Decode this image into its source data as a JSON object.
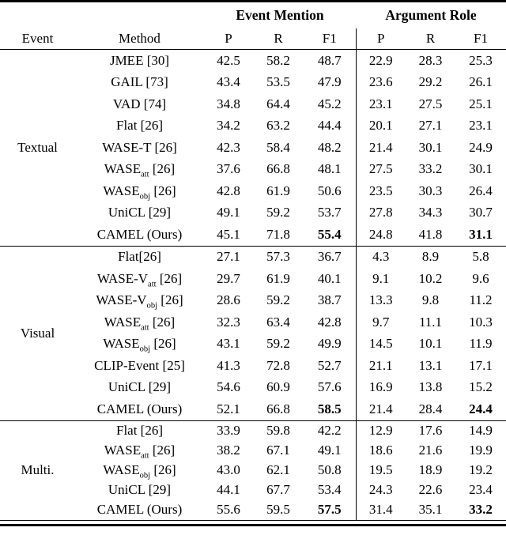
{
  "table": {
    "header": {
      "event_mention": "Event Mention",
      "argument_role": "Argument Role",
      "event": "Event",
      "method": "Method",
      "p": "P",
      "r": "R",
      "f1": "F1"
    },
    "column_keys": [
      "em-p",
      "em-r",
      "em-f1",
      "ar-p",
      "ar-r",
      "ar-f1"
    ],
    "sections": [
      {
        "event": "Textual",
        "rows": [
          {
            "method": "JMEE [30]",
            "values": [
              "42.5",
              "58.2",
              "48.7",
              "22.9",
              "28.3",
              "25.3"
            ],
            "bold_f1": false
          },
          {
            "method": "GAIL [73]",
            "values": [
              "43.4",
              "53.5",
              "47.9",
              "23.6",
              "29.2",
              "26.1"
            ],
            "bold_f1": false
          },
          {
            "method": "VAD [74]",
            "values": [
              "34.8",
              "64.4",
              "45.2",
              "23.1",
              "27.5",
              "25.1"
            ],
            "bold_f1": false
          },
          {
            "method": "Flat [26]",
            "values": [
              "34.2",
              "63.2",
              "44.4",
              "20.1",
              "27.1",
              "23.1"
            ],
            "bold_f1": false
          },
          {
            "method": "WASE-T [26]",
            "values": [
              "42.3",
              "58.4",
              "48.2",
              "21.4",
              "30.1",
              "24.9"
            ],
            "bold_f1": false
          },
          {
            "method": "WASE_{att} [26]",
            "values": [
              "37.6",
              "66.8",
              "48.1",
              "27.5",
              "33.2",
              "30.1"
            ],
            "bold_f1": false
          },
          {
            "method": "WASE_{obj} [26]",
            "values": [
              "42.8",
              "61.9",
              "50.6",
              "23.5",
              "30.3",
              "26.4"
            ],
            "bold_f1": false
          },
          {
            "method": "UniCL [29]",
            "values": [
              "49.1",
              "59.2",
              "53.7",
              "27.8",
              "34.3",
              "30.7"
            ],
            "bold_f1": false
          },
          {
            "method": "CAMEL (Ours)",
            "values": [
              "45.1",
              "71.8",
              "55.4",
              "24.8",
              "41.8",
              "31.1"
            ],
            "bold_f1": true
          }
        ]
      },
      {
        "event": "Visual",
        "rows": [
          {
            "method": "Flat[26]",
            "values": [
              "27.1",
              "57.3",
              "36.7",
              "4.3",
              "8.9",
              "5.8"
            ],
            "bold_f1": false
          },
          {
            "method": "WASE-V_{att} [26]",
            "values": [
              "29.7",
              "61.9",
              "40.1",
              "9.1",
              "10.2",
              "9.6"
            ],
            "bold_f1": false
          },
          {
            "method": "WASE-V_{obj} [26]",
            "values": [
              "28.6",
              "59.2",
              "38.7",
              "13.3",
              "9.8",
              "11.2"
            ],
            "bold_f1": false
          },
          {
            "method": "WASE_{att} [26]",
            "values": [
              "32.3",
              "63.4",
              "42.8",
              "9.7",
              "11.1",
              "10.3"
            ],
            "bold_f1": false
          },
          {
            "method": "WASE_{obj} [26]",
            "values": [
              "43.1",
              "59.2",
              "49.9",
              "14.5",
              "10.1",
              "11.9"
            ],
            "bold_f1": false
          },
          {
            "method": "CLIP-Event [25]",
            "values": [
              "41.3",
              "72.8",
              "52.7",
              "21.1",
              "13.1",
              "17.1"
            ],
            "bold_f1": false
          },
          {
            "method": "UniCL [29]",
            "values": [
              "54.6",
              "60.9",
              "57.6",
              "16.9",
              "13.8",
              "15.2"
            ],
            "bold_f1": false
          },
          {
            "method": "CAMEL (Ours)",
            "values": [
              "52.1",
              "66.8",
              "58.5",
              "21.4",
              "28.4",
              "24.4"
            ],
            "bold_f1": true
          }
        ]
      },
      {
        "event": "Multi.",
        "rows": [
          {
            "method": "Flat [26]",
            "values": [
              "33.9",
              "59.8",
              "42.2",
              "12.9",
              "17.6",
              "14.9"
            ],
            "bold_f1": false
          },
          {
            "method": "WASE_{att} [26]",
            "values": [
              "38.2",
              "67.1",
              "49.1",
              "18.6",
              "21.6",
              "19.9"
            ],
            "bold_f1": false
          },
          {
            "method": "WASE_{obj} [26]",
            "values": [
              "43.0",
              "62.1",
              "50.8",
              "19.5",
              "18.9",
              "19.2"
            ],
            "bold_f1": false
          },
          {
            "method": "UniCL [29]",
            "values": [
              "44.1",
              "67.7",
              "53.4",
              "24.3",
              "22.6",
              "23.4"
            ],
            "bold_f1": false
          },
          {
            "method": "CAMEL (Ours)",
            "values": [
              "55.6",
              "59.5",
              "57.5",
              "31.4",
              "35.1",
              "33.2"
            ],
            "bold_f1": true
          }
        ]
      }
    ]
  }
}
